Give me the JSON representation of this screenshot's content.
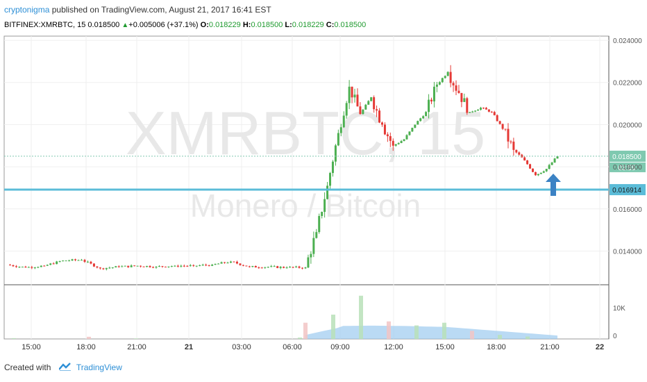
{
  "header": {
    "author": "cryptonigma",
    "published_text": "published on TradingView.com, August 21, 2017 16:41 EST",
    "symbol": "BITFINEX:XMRBTC, 15",
    "last": "0.018500",
    "change": "+0.005006 (+37.1%)",
    "o_label": "O:",
    "o_value": "0.018229",
    "h_label": "H:",
    "h_value": "0.018500",
    "l_label": "L:",
    "l_value": "0.018229",
    "c_label": "C:",
    "c_value": "0.018500"
  },
  "watermark": {
    "symbol": "XMRBTC, 15",
    "description": "Monero / Bitcoin"
  },
  "footer": {
    "created_with": "Created with",
    "brand": "TradingView"
  },
  "colors": {
    "up": "#4caf50",
    "down": "#e53935",
    "support_line": "#5bbcd8",
    "price_tag": "#7fc9b0",
    "arrow": "#3b82c4",
    "volume_area": "#9ccbf0"
  },
  "chart_data": {
    "type": "candlestick",
    "symbol": "BITFINEX:XMRBTC",
    "interval": "15",
    "ylim": [
      0.0124,
      0.0242
    ],
    "y_ticks": [
      "0.024000",
      "0.022000",
      "0.020000",
      "0.018000",
      "0.016000",
      "0.014000"
    ],
    "x_ticks": [
      "15:00",
      "18:00",
      "21:00",
      "21",
      "03:00",
      "06:00",
      "09:00",
      "12:00",
      "15:00",
      "18:00",
      "21:00",
      "22"
    ],
    "price_label": "0.018500",
    "countdown": "03:59",
    "support_level": 0.016914,
    "support_label": "0.016914",
    "volume_ticks": [
      "10K",
      "0"
    ],
    "series": [
      {
        "x": "14:00",
        "y": 0.01335
      },
      {
        "x": "15:00",
        "y": 0.01322
      },
      {
        "x": "16:00",
        "y": 0.0133
      },
      {
        "x": "17:00",
        "y": 0.01355
      },
      {
        "x": "18:00",
        "y": 0.01358
      },
      {
        "x": "19:00",
        "y": 0.01318
      },
      {
        "x": "20:00",
        "y": 0.01325
      },
      {
        "x": "21:00",
        "y": 0.0133
      },
      {
        "x": "22:00",
        "y": 0.01326
      },
      {
        "x": "23:00",
        "y": 0.0133
      },
      {
        "x": "00:00",
        "y": 0.0133
      },
      {
        "x": "01:00",
        "y": 0.01335
      },
      {
        "x": "02:00",
        "y": 0.0135
      },
      {
        "x": "03:00",
        "y": 0.01325
      },
      {
        "x": "04:00",
        "y": 0.01325
      },
      {
        "x": "05:00",
        "y": 0.01322
      },
      {
        "x": "06:00",
        "y": 0.01322
      },
      {
        "x": "07:00",
        "y": 0.0149
      },
      {
        "x": "08:00",
        "y": 0.0171
      },
      {
        "x": "08:30",
        "y": 0.0196
      },
      {
        "x": "09:00",
        "y": 0.0218
      },
      {
        "x": "09:30",
        "y": 0.0205
      },
      {
        "x": "10:00",
        "y": 0.0213
      },
      {
        "x": "10:30",
        "y": 0.02
      },
      {
        "x": "11:00",
        "y": 0.019
      },
      {
        "x": "12:00",
        "y": 0.0193
      },
      {
        "x": "12:30",
        "y": 0.02
      },
      {
        "x": "13:00",
        "y": 0.0206
      },
      {
        "x": "13:30",
        "y": 0.0219
      },
      {
        "x": "14:00",
        "y": 0.0225
      },
      {
        "x": "14:30",
        "y": 0.0215
      },
      {
        "x": "15:00",
        "y": 0.0206
      },
      {
        "x": "16:00",
        "y": 0.0208
      },
      {
        "x": "17:00",
        "y": 0.0206
      },
      {
        "x": "18:00",
        "y": 0.0198
      },
      {
        "x": "19:00",
        "y": 0.0188
      },
      {
        "x": "20:00",
        "y": 0.0183
      },
      {
        "x": "20:30",
        "y": 0.0176
      },
      {
        "x": "21:00",
        "y": 0.0179
      },
      {
        "x": "21:15",
        "y": 0.0185
      }
    ],
    "volume": [
      {
        "x": "14:00",
        "v": 300
      },
      {
        "x": "18:00",
        "v": 800
      },
      {
        "x": "21:00",
        "v": 200
      },
      {
        "x": "06:00",
        "v": 500
      },
      {
        "x": "07:00",
        "v": 6000
      },
      {
        "x": "08:00",
        "v": 9000
      },
      {
        "x": "09:00",
        "v": 16000
      },
      {
        "x": "10:00",
        "v": 6500
      },
      {
        "x": "12:00",
        "v": 5000
      },
      {
        "x": "14:00",
        "v": 6000
      },
      {
        "x": "15:00",
        "v": 3000
      },
      {
        "x": "18:00",
        "v": 1500
      },
      {
        "x": "21:00",
        "v": 900
      }
    ]
  }
}
